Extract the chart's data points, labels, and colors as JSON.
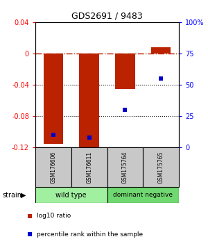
{
  "title": "GDS2691 / 9483",
  "samples": [
    "GSM176606",
    "GSM176611",
    "GSM175764",
    "GSM175765"
  ],
  "log10_ratio": [
    -0.115,
    -0.12,
    -0.045,
    0.008
  ],
  "percentile_rank": [
    10,
    8,
    30,
    55
  ],
  "ylim_left": [
    -0.12,
    0.04
  ],
  "ylim_right": [
    0,
    100
  ],
  "yticks_left": [
    -0.12,
    -0.08,
    -0.04,
    0,
    0.04
  ],
  "yticks_right": [
    0,
    25,
    50,
    75,
    100
  ],
  "ytick_labels_right": [
    "0",
    "25",
    "50",
    "75",
    "100%"
  ],
  "bar_color": "#BB2200",
  "dot_color": "#0000CC",
  "zero_line_color": "#BB2200",
  "strain_label": "strain",
  "legend_red": "log10 ratio",
  "legend_blue": "percentile rank within the sample",
  "gray_box": "#C8C8C8",
  "green_wt": "#A0F0A0",
  "green_dn": "#70D870"
}
